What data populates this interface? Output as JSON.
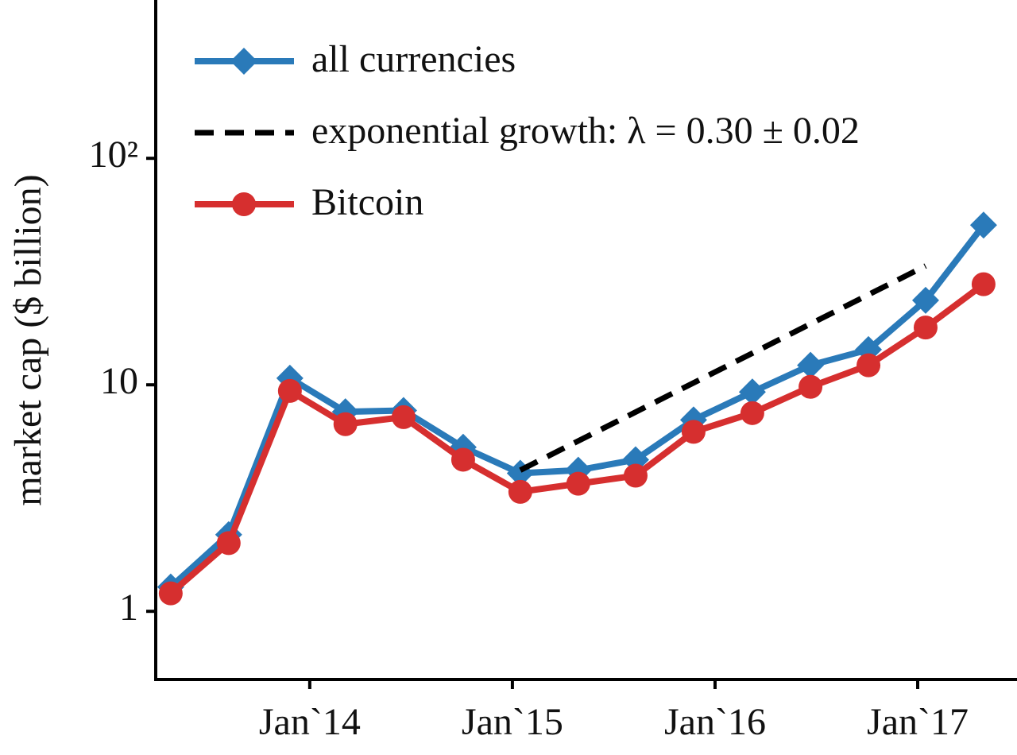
{
  "chart_data": {
    "type": "line",
    "y_label": "market cap ($ billion)",
    "log_y": true,
    "xlim": [
      2013.24,
      2017.49
    ],
    "xticks": [
      {
        "value": 2014,
        "label": "Jan`14"
      },
      {
        "value": 2015,
        "label": "Jan`15"
      },
      {
        "value": 2016,
        "label": "Jan`16"
      },
      {
        "value": 2017,
        "label": "Jan`17"
      }
    ],
    "ylim": [
      0.5,
      500
    ],
    "yticks": [
      1,
      10,
      {
        "value": 100,
        "label": "10²"
      }
    ],
    "legend": "upper left",
    "series": [
      {
        "name": "all currencies",
        "color": "#2a7ab9",
        "marker": "diamond",
        "dash": "solid",
        "x": [
          2013.314,
          2013.6,
          2013.902,
          2014.176,
          2014.463,
          2014.757,
          2015.039,
          2015.325,
          2015.608,
          2015.894,
          2016.184,
          2016.471,
          2016.757,
          2017.039,
          2017.325
        ],
        "values": [
          1.28,
          2.18,
          10.7,
          7.6,
          7.7,
          5.3,
          4.07,
          4.2,
          4.67,
          7.0,
          9.3,
          12.2,
          14.3,
          23.6,
          50.7
        ]
      },
      {
        "name": "exponential growth: λ = 0.30 ± 0.02",
        "color": "#000000",
        "marker": "none",
        "dash": "dashed",
        "x": [
          2015.039,
          2017.039
        ],
        "values": [
          4.2,
          33.5
        ]
      },
      {
        "name": "Bitcoin",
        "color": "#d62f2f",
        "marker": "circle",
        "dash": "solid",
        "x": [
          2013.314,
          2013.6,
          2013.902,
          2014.176,
          2014.463,
          2014.757,
          2015.039,
          2015.325,
          2015.608,
          2015.894,
          2016.184,
          2016.471,
          2016.757,
          2017.039,
          2017.325
        ],
        "values": [
          1.2,
          2.0,
          9.4,
          6.7,
          7.2,
          4.67,
          3.37,
          3.66,
          3.97,
          6.2,
          7.5,
          9.8,
          12.2,
          17.9,
          27.8
        ]
      }
    ]
  }
}
